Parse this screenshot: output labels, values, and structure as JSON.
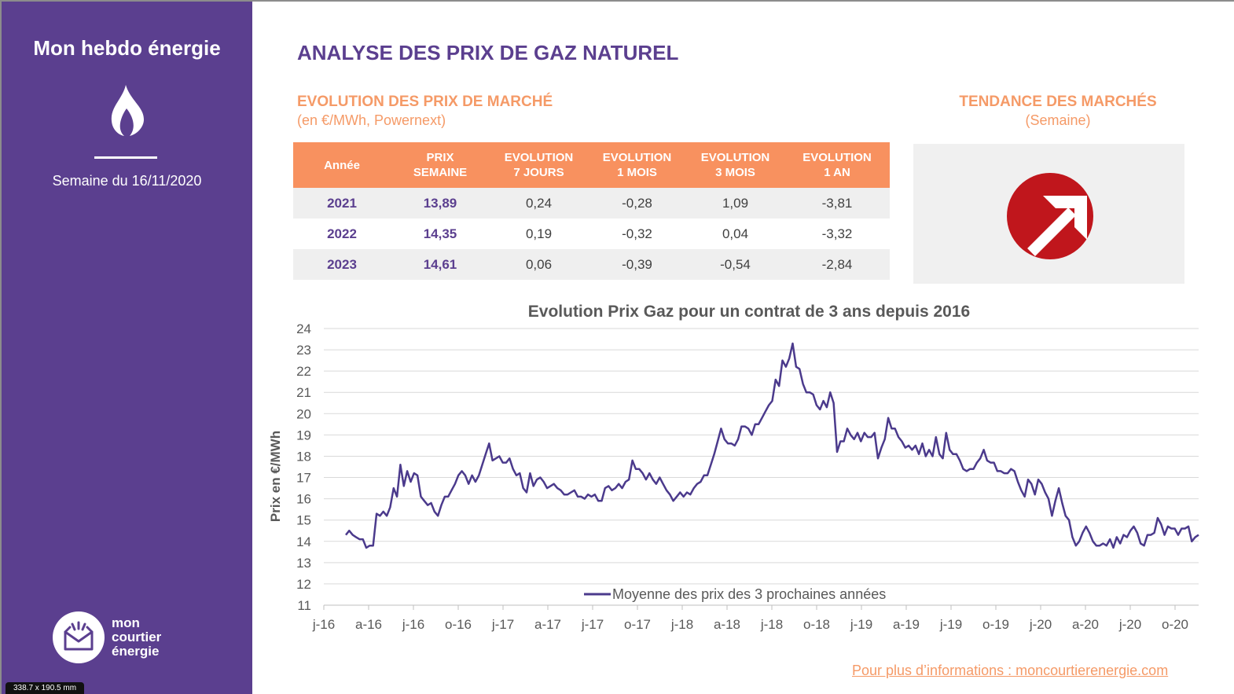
{
  "sidebar": {
    "title": "Mon hebdo énergie",
    "week": "Semaine du 16/11/2020",
    "logo_lines": [
      "mon",
      "courtier",
      "énergie"
    ],
    "dimension_label": "338.7 x 190.5 mm"
  },
  "header": {
    "title": "ANALYSE DES PRIX DE GAZ NATUREL",
    "evolution_title": "EVOLUTION DES PRIX DE MARCHÉ",
    "evolution_sub": "(en €/MWh, Powernext)",
    "trend_title": "TENDANCE DES MARCHÉS",
    "trend_sub": "(Semaine)",
    "trend_icon": "up-right-arrow-icon"
  },
  "table": {
    "headers": [
      [
        "Année"
      ],
      [
        "PRIX",
        "SEMAINE"
      ],
      [
        "EVOLUTION",
        "7 JOURS"
      ],
      [
        "EVOLUTION",
        "1 MOIS"
      ],
      [
        "EVOLUTION",
        "3 MOIS"
      ],
      [
        "EVOLUTION",
        "1 AN"
      ]
    ],
    "rows": [
      [
        "2021",
        "13,89",
        "0,24",
        "-0,28",
        "1,09",
        "-3,81"
      ],
      [
        "2022",
        "14,35",
        "0,19",
        "-0,32",
        "0,04",
        "-3,32"
      ],
      [
        "2023",
        "14,61",
        "0,06",
        "-0,39",
        "-0,54",
        "-2,84"
      ]
    ]
  },
  "colors": {
    "purple": "#5b3f8f",
    "orange": "#f8915f",
    "line": "#4b3a8c",
    "trend_red": "#c0161c"
  },
  "chart_data": {
    "type": "line",
    "title": "Evolution Prix Gaz pour un contrat de 3 ans depuis 2016",
    "ylabel": "Prix en €/MWh",
    "xlabel": "",
    "ylim": [
      11,
      24
    ],
    "yticks": [
      11,
      12,
      13,
      14,
      15,
      16,
      17,
      18,
      19,
      20,
      21,
      22,
      23,
      24
    ],
    "xticks": [
      "j-16",
      "a-16",
      "j-16",
      "o-16",
      "j-17",
      "a-17",
      "j-17",
      "o-17",
      "j-18",
      "a-18",
      "j-18",
      "o-18",
      "j-19",
      "a-19",
      "j-19",
      "o-19",
      "j-20",
      "a-20",
      "j-20",
      "o-20"
    ],
    "grid": true,
    "legend": "bottom",
    "series": [
      {
        "name": "Moyenne des prix des 3 prochaines années",
        "x_start": "2016-02-08",
        "x_step_days": 7,
        "values": [
          14.3,
          14.5,
          14.3,
          14.2,
          14.1,
          14.1,
          13.7,
          13.8,
          13.8,
          15.3,
          15.2,
          15.4,
          15.2,
          15.6,
          16.5,
          16.1,
          17.6,
          16.6,
          17.3,
          16.8,
          17.2,
          17.1,
          16.1,
          15.9,
          15.7,
          15.8,
          15.4,
          15.2,
          15.7,
          16.1,
          16.1,
          16.4,
          16.7,
          17.1,
          17.3,
          17.1,
          16.7,
          17.1,
          16.8,
          17.1,
          17.6,
          18.1,
          18.6,
          17.8,
          17.9,
          18.0,
          17.7,
          17.7,
          17.9,
          17.4,
          17.1,
          17.2,
          16.5,
          16.3,
          17.2,
          16.6,
          16.9,
          17.0,
          16.8,
          16.5,
          16.6,
          16.7,
          16.5,
          16.4,
          16.2,
          16.2,
          16.3,
          16.4,
          16.1,
          16.1,
          16.0,
          16.2,
          16.1,
          16.2,
          15.9,
          15.9,
          16.5,
          16.6,
          16.4,
          16.5,
          16.7,
          16.5,
          16.8,
          16.9,
          17.8,
          17.4,
          17.4,
          17.2,
          16.9,
          17.2,
          16.9,
          16.7,
          17.0,
          16.7,
          16.4,
          16.2,
          15.9,
          16.1,
          16.3,
          16.1,
          16.3,
          16.2,
          16.5,
          16.7,
          16.8,
          17.1,
          17.1,
          17.6,
          18.1,
          18.7,
          19.3,
          18.8,
          18.6,
          18.6,
          18.5,
          18.8,
          19.4,
          19.4,
          19.3,
          19.0,
          19.5,
          19.5,
          19.8,
          20.1,
          20.4,
          20.6,
          21.6,
          21.3,
          22.5,
          22.2,
          22.6,
          23.3,
          22.2,
          22.1,
          21.4,
          21.0,
          21.0,
          20.9,
          20.4,
          20.2,
          20.6,
          20.3,
          21.0,
          20.5,
          18.2,
          18.7,
          18.7,
          19.3,
          19.0,
          18.8,
          19.1,
          18.7,
          19.1,
          18.9,
          18.9,
          19.1,
          17.9,
          18.4,
          18.8,
          19.8,
          19.3,
          19.3,
          18.9,
          18.7,
          18.4,
          18.5,
          18.3,
          18.5,
          18.1,
          18.6,
          18.0,
          18.3,
          18.0,
          18.9,
          18.1,
          17.9,
          19.1,
          18.3,
          18.1,
          18.1,
          17.8,
          17.4,
          17.3,
          17.4,
          17.4,
          17.7,
          17.9,
          18.3,
          17.8,
          17.7,
          17.7,
          17.3,
          17.3,
          17.2,
          17.2,
          17.4,
          17.3,
          16.8,
          16.4,
          16.1,
          16.9,
          16.7,
          16.2,
          16.9,
          16.7,
          16.3,
          16.0,
          15.2,
          15.9,
          16.5,
          15.8,
          15.2,
          15.0,
          14.2,
          13.8,
          14.0,
          14.4,
          14.7,
          14.4,
          14.0,
          13.8,
          13.8,
          13.9,
          13.8,
          14.1,
          13.7,
          14.2,
          13.9,
          14.3,
          14.2,
          14.5,
          14.7,
          14.4,
          13.9,
          13.8,
          14.3,
          14.3,
          14.4,
          15.1,
          14.8,
          14.3,
          14.7,
          14.6,
          14.6,
          14.3,
          14.6,
          14.6,
          14.7,
          14.0,
          14.2,
          14.3
        ]
      }
    ]
  },
  "footer": {
    "link_text": "Pour plus d’informations : moncourtierenergie.com"
  }
}
